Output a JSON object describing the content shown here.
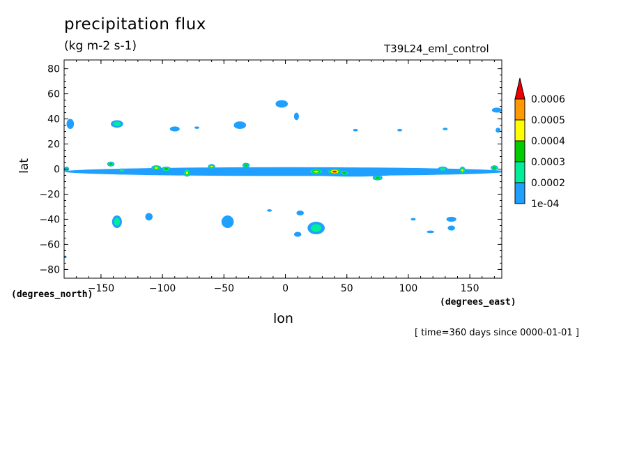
{
  "chart_data": {
    "type": "contour-map",
    "title": "precipitation flux",
    "units": "(kg m-2 s-1)",
    "run_label": "T39L24_eml_control",
    "xlabel": "lon",
    "ylabel": "lat",
    "x_units_label": "(degrees_east)",
    "y_units_label": "(degrees_north)",
    "time_note": "[ time=360 days since 0000-01-01 ]",
    "xlim": [
      -180,
      176
    ],
    "ylim": [
      -87,
      87
    ],
    "x_ticks": [
      -150,
      -100,
      -50,
      0,
      50,
      100,
      150
    ],
    "x_tick_labels": [
      "−150",
      "−100",
      "−50",
      "0",
      "50",
      "100",
      "150"
    ],
    "y_ticks": [
      80,
      60,
      40,
      20,
      0,
      -20,
      -40,
      -60,
      -80
    ],
    "y_tick_labels": [
      "80",
      "60",
      "40",
      "20",
      "0",
      "−20",
      "−40",
      "−60",
      "−80"
    ],
    "levels": [
      0.0001,
      0.0002,
      0.0003,
      0.0004,
      0.0005,
      0.0006
    ],
    "level_labels": [
      "1e-04",
      "0.0002",
      "0.0003",
      "0.0004",
      "0.0005",
      "0.0006"
    ],
    "level_colors": [
      "#1fa0ff",
      "#00ee99",
      "#00cc00",
      "#ffff00",
      "#ff9900",
      "#ee0000"
    ],
    "features": [
      {
        "lon": 0,
        "lat": -2,
        "dlon": 180,
        "dlat": 3.5,
        "level": 1
      },
      {
        "lon": 55,
        "lat": -3,
        "dlon": 40,
        "dlat": 3,
        "level": 1
      },
      {
        "lon": 25,
        "lat": -2,
        "dlon": 6,
        "dlat": 2.2,
        "level": 4
      },
      {
        "lon": 40,
        "lat": -2,
        "dlon": 6,
        "dlat": 2.5,
        "level": 6
      },
      {
        "lon": 48,
        "lat": -3,
        "dlon": 4,
        "dlat": 2,
        "level": 3
      },
      {
        "lon": 75,
        "lat": -7,
        "dlon": 4,
        "dlat": 2,
        "level": 3
      },
      {
        "lon": -142,
        "lat": 4,
        "dlon": 3,
        "dlat": 2,
        "level": 3
      },
      {
        "lon": -133,
        "lat": -1,
        "dlon": 3,
        "dlat": 1.5,
        "level": 2
      },
      {
        "lon": -105,
        "lat": 1,
        "dlon": 4,
        "dlat": 2,
        "level": 4
      },
      {
        "lon": -97,
        "lat": 0,
        "dlon": 4,
        "dlat": 2,
        "level": 3
      },
      {
        "lon": -80,
        "lat": -3,
        "dlon": 3,
        "dlat": 3,
        "level": 4
      },
      {
        "lon": -60,
        "lat": 2,
        "dlon": 3,
        "dlat": 2,
        "level": 4
      },
      {
        "lon": -32,
        "lat": 3,
        "dlon": 3,
        "dlat": 2,
        "level": 3
      },
      {
        "lon": 128,
        "lat": 0,
        "dlon": 4,
        "dlat": 2,
        "level": 2
      },
      {
        "lon": 144,
        "lat": -1,
        "dlon": 2.5,
        "dlat": 3,
        "level": 4
      },
      {
        "lon": 170,
        "lat": 1,
        "dlon": 3,
        "dlat": 2,
        "level": 3
      },
      {
        "lon": -178,
        "lat": 0,
        "dlon": 2,
        "dlat": 2,
        "level": 2
      },
      {
        "lon": -137,
        "lat": 36,
        "dlon": 5,
        "dlat": 3,
        "level": 2
      },
      {
        "lon": -175,
        "lat": 36,
        "dlon": 3,
        "dlat": 4,
        "level": 1
      },
      {
        "lon": -90,
        "lat": 32,
        "dlon": 4,
        "dlat": 2,
        "level": 1
      },
      {
        "lon": -72,
        "lat": 33,
        "dlon": 2,
        "dlat": 1,
        "level": 1
      },
      {
        "lon": -37,
        "lat": 35,
        "dlon": 5,
        "dlat": 3,
        "level": 1
      },
      {
        "lon": -3,
        "lat": 52,
        "dlon": 5,
        "dlat": 3,
        "level": 1
      },
      {
        "lon": 9,
        "lat": 42,
        "dlon": 2,
        "dlat": 3,
        "level": 1
      },
      {
        "lon": 57,
        "lat": 31,
        "dlon": 2,
        "dlat": 1,
        "level": 1
      },
      {
        "lon": 93,
        "lat": 31,
        "dlon": 2,
        "dlat": 1,
        "level": 1
      },
      {
        "lon": 130,
        "lat": 32,
        "dlon": 2,
        "dlat": 1,
        "level": 1
      },
      {
        "lon": 172,
        "lat": 47,
        "dlon": 4,
        "dlat": 2,
        "level": 1
      },
      {
        "lon": 173,
        "lat": 31,
        "dlon": 2,
        "dlat": 2,
        "level": 1
      },
      {
        "lon": -137,
        "lat": -42,
        "dlon": 4,
        "dlat": 5,
        "level": 2
      },
      {
        "lon": -111,
        "lat": -38,
        "dlon": 3,
        "dlat": 3,
        "level": 1
      },
      {
        "lon": -47,
        "lat": -42,
        "dlon": 5,
        "dlat": 5,
        "level": 1
      },
      {
        "lon": -13,
        "lat": -33,
        "dlon": 2,
        "dlat": 1,
        "level": 1
      },
      {
        "lon": 10,
        "lat": -52,
        "dlon": 3,
        "dlat": 2,
        "level": 1
      },
      {
        "lon": 12,
        "lat": -35,
        "dlon": 3,
        "dlat": 2,
        "level": 1
      },
      {
        "lon": 25,
        "lat": -47,
        "dlon": 7,
        "dlat": 5,
        "level": 2
      },
      {
        "lon": 135,
        "lat": -40,
        "dlon": 4,
        "dlat": 2,
        "level": 1
      },
      {
        "lon": 135,
        "lat": -47,
        "dlon": 3,
        "dlat": 2,
        "level": 1
      },
      {
        "lon": 118,
        "lat": -50,
        "dlon": 3,
        "dlat": 1,
        "level": 1
      },
      {
        "lon": 104,
        "lat": -40,
        "dlon": 2,
        "dlat": 1,
        "level": 1
      },
      {
        "lon": -179,
        "lat": -70,
        "dlon": 1,
        "dlat": 1,
        "level": 1
      }
    ]
  }
}
